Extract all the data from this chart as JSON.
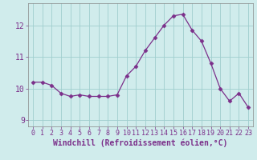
{
  "x": [
    0,
    1,
    2,
    3,
    4,
    5,
    6,
    7,
    8,
    9,
    10,
    11,
    12,
    13,
    14,
    15,
    16,
    17,
    18,
    19,
    20,
    21,
    22,
    23
  ],
  "y": [
    10.2,
    10.2,
    10.1,
    9.85,
    9.75,
    9.8,
    9.75,
    9.75,
    9.75,
    9.8,
    10.4,
    10.7,
    11.2,
    11.6,
    12.0,
    12.3,
    12.35,
    11.85,
    11.5,
    10.8,
    10.0,
    9.6,
    9.85,
    9.4
  ],
  "line_color": "#7b2f8a",
  "marker": "D",
  "marker_size": 2.5,
  "bg_color": "#d0ecec",
  "grid_color": "#9fcece",
  "axis_color": "#555555",
  "tick_color": "#7b2f8a",
  "xlabel": "Windchill (Refroidissement éolien,°C)",
  "ylim": [
    8.8,
    12.7
  ],
  "yticks": [
    9,
    10,
    11,
    12
  ],
  "xticks": [
    0,
    1,
    2,
    3,
    4,
    5,
    6,
    7,
    8,
    9,
    10,
    11,
    12,
    13,
    14,
    15,
    16,
    17,
    18,
    19,
    20,
    21,
    22,
    23
  ],
  "font_color": "#7b2f8a",
  "tick_fontsize": 6,
  "ytick_fontsize": 7,
  "xlabel_fontsize": 7
}
